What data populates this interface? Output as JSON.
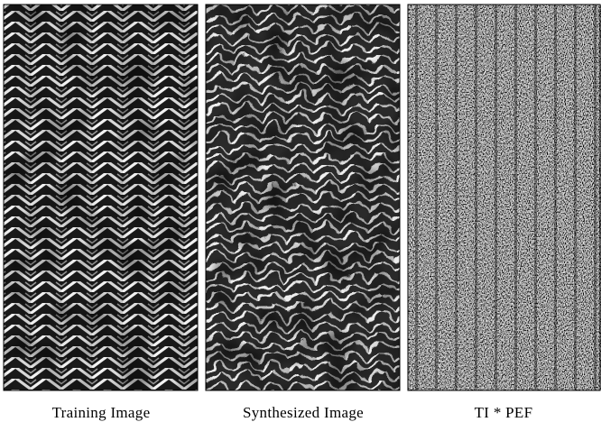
{
  "figure": {
    "panels": [
      {
        "caption": "Training Image"
      },
      {
        "caption": "Synthesized Image"
      },
      {
        "caption": "TI * PEF"
      }
    ]
  }
}
